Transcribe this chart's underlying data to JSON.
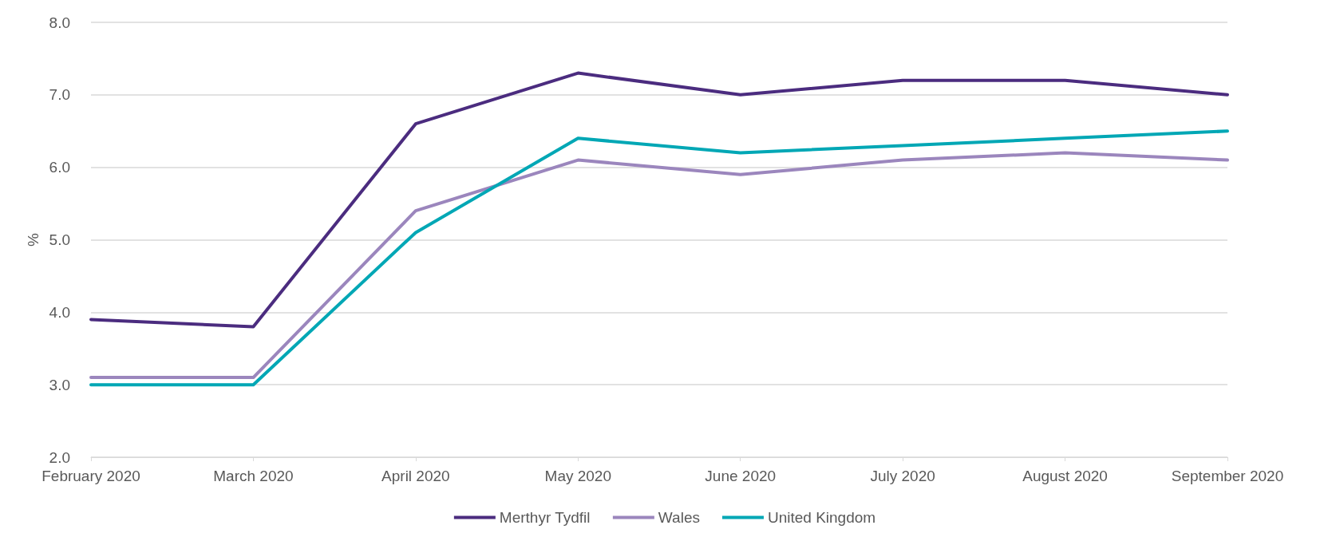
{
  "chart_data": {
    "type": "line",
    "ylabel": "%",
    "categories": [
      "February 2020",
      "March 2020",
      "April 2020",
      "May 2020",
      "June 2020",
      "July 2020",
      "August 2020",
      "September 2020"
    ],
    "series": [
      {
        "name": "Merthyr Tydfil",
        "color": "#4b2c7f",
        "values": [
          3.9,
          3.8,
          6.6,
          7.3,
          7.0,
          7.2,
          7.2,
          7.0
        ]
      },
      {
        "name": "Wales",
        "color": "#9b86bd",
        "values": [
          3.1,
          3.1,
          5.4,
          6.1,
          5.9,
          6.1,
          6.2,
          6.1
        ]
      },
      {
        "name": "United Kingdom",
        "color": "#00a7b5",
        "values": [
          3.0,
          3.0,
          5.1,
          6.4,
          6.2,
          6.3,
          6.4,
          6.5
        ]
      }
    ],
    "ylim": [
      2.0,
      8.0
    ],
    "yticks": [
      {
        "value": 2,
        "label": "2.0"
      },
      {
        "value": 3,
        "label": "3.0"
      },
      {
        "value": 4,
        "label": "4.0"
      },
      {
        "value": 5,
        "label": "5.0"
      },
      {
        "value": 6,
        "label": "6.0"
      },
      {
        "value": 7,
        "label": "7.0"
      },
      {
        "value": 8,
        "label": "8.0"
      }
    ],
    "grid": "y",
    "legend": "bottom",
    "marker": "none",
    "line_style": "solid"
  }
}
